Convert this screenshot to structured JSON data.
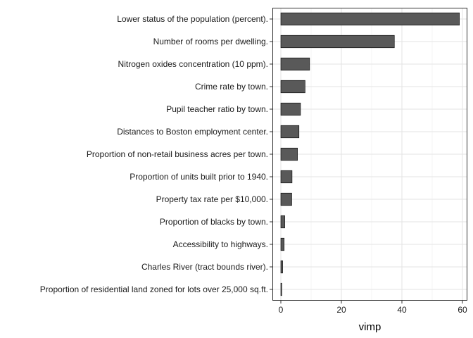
{
  "chart_data": {
    "type": "bar",
    "orientation": "horizontal",
    "title": "",
    "xlabel": "vimp",
    "ylabel": "",
    "xlim": [
      0,
      60
    ],
    "x_ticks": [
      0,
      20,
      40,
      60
    ],
    "grid": true,
    "bar_color": "#595959",
    "bar_outline": "#000000",
    "categories": [
      "Lower status of the population (percent).",
      "Number of rooms per dwelling.",
      "Nitrogen oxides concentration (10 ppm).",
      "Crime rate by town.",
      "Pupil teacher ratio by town.",
      "Distances to Boston employment center.",
      "Proportion of non-retail business acres per town.",
      "Proportion of units built prior to 1940.",
      "Property tax rate per $10,000.",
      "Proportion of blacks by town.",
      "Accessibility to highways.",
      "Charles River (tract bounds river).",
      "Proportion of residential land zoned for lots over 25,000 sq.ft."
    ],
    "values": [
      59.0,
      37.5,
      9.5,
      8.0,
      6.5,
      6.0,
      5.5,
      3.7,
      3.6,
      1.3,
      1.1,
      0.6,
      0.3
    ]
  }
}
